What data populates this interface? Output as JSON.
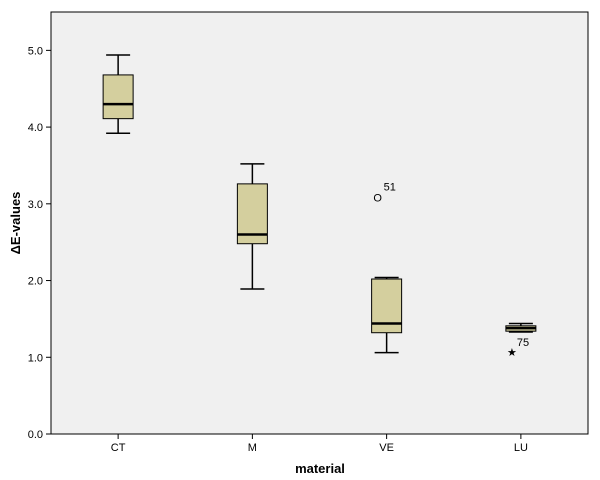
{
  "chart_data": {
    "type": "boxplot",
    "xlabel": "material",
    "ylabel": "ΔE-values",
    "ylim": [
      0.0,
      5.5
    ],
    "yticks": [
      0.0,
      1.0,
      2.0,
      3.0,
      4.0,
      5.0
    ],
    "ytick_labels": [
      "0.0",
      "1.0",
      "2.0",
      "3.0",
      "4.0",
      "5.0"
    ],
    "categories": [
      "CT",
      "M",
      "VE",
      "LU"
    ],
    "grid": false,
    "colors": {
      "plot_background": "#f0f0f0",
      "box_fill": "#d4cf9e",
      "stroke": "#000000"
    },
    "boxes": [
      {
        "category": "CT",
        "min": 3.92,
        "q1": 4.11,
        "median": 4.3,
        "q3": 4.68,
        "max": 4.94,
        "outliers": []
      },
      {
        "category": "M",
        "min": 1.89,
        "q1": 2.48,
        "median": 2.6,
        "q3": 3.26,
        "max": 3.52,
        "outliers": []
      },
      {
        "category": "VE",
        "min": 1.06,
        "q1": 1.32,
        "median": 1.44,
        "q3": 2.02,
        "max": 2.04,
        "outliers": [
          {
            "value": 3.08,
            "label": "51",
            "marker": "circle",
            "marker_text": "O"
          }
        ]
      },
      {
        "category": "LU",
        "min": 1.33,
        "q1": 1.34,
        "median": 1.38,
        "q3": 1.41,
        "max": 1.44,
        "outliers": [
          {
            "value": 1.07,
            "label": "75",
            "marker": "star",
            "marker_text": "★"
          }
        ]
      }
    ]
  }
}
